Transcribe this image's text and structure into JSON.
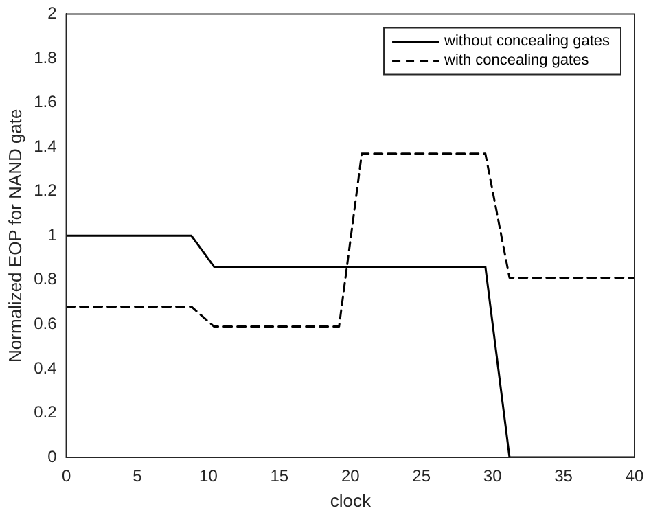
{
  "chart_data": {
    "type": "line",
    "xlabel": "clock",
    "ylabel": "Normalized EOP for NAND gate",
    "xlim": [
      0,
      40
    ],
    "xticks": [
      0,
      5,
      10,
      15,
      20,
      25,
      30,
      35,
      40
    ],
    "ylim": [
      0,
      2
    ],
    "yticks": [
      0,
      0.2,
      0.4,
      0.6,
      0.8,
      1,
      1.2,
      1.4,
      1.6,
      1.8,
      2
    ],
    "grid": false,
    "legend": "top right",
    "marker": "none",
    "series": [
      {
        "name": "without concealing gates",
        "color": "#000000",
        "line_style": "solid",
        "x": [
          0,
          8.8,
          10.4,
          29.5,
          31.2,
          40
        ],
        "values": [
          1,
          1,
          0.86,
          0.86,
          0,
          0
        ]
      },
      {
        "name": "with concealing gates",
        "color": "#000000",
        "line_style": "dashed",
        "x": [
          0,
          8.8,
          10.4,
          19.2,
          20.8,
          29.5,
          31.2,
          40
        ],
        "values": [
          0.68,
          0.68,
          0.59,
          0.59,
          1.37,
          1.37,
          0.81,
          0.81
        ]
      }
    ]
  }
}
